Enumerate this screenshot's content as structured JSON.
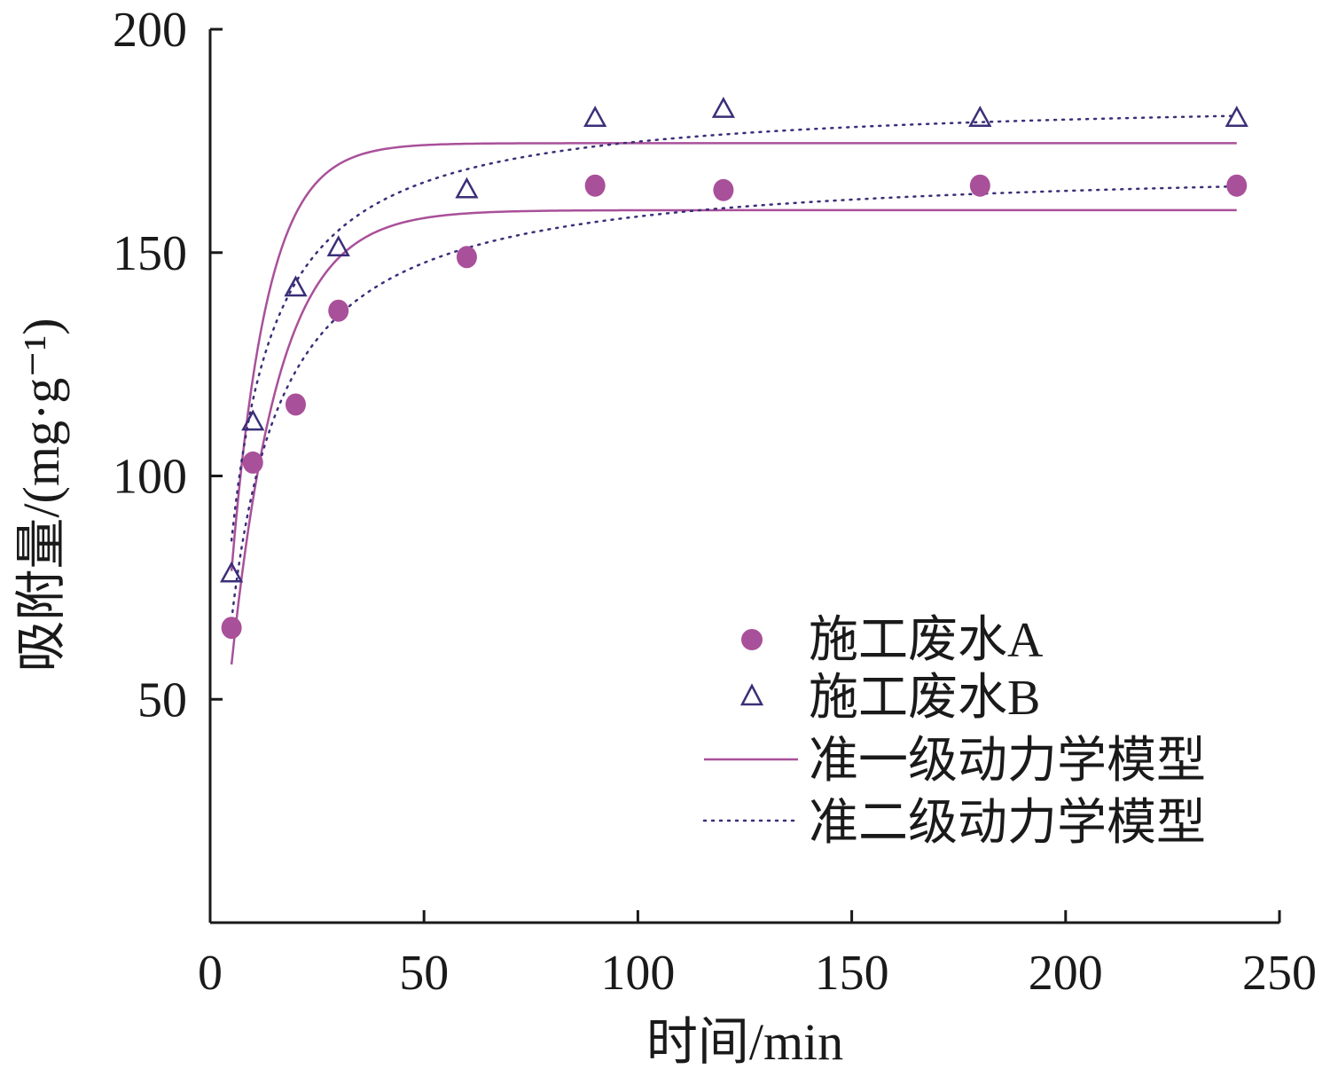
{
  "chart_data": {
    "type": "scatter",
    "title": "",
    "xlabel": "时间/min",
    "ylabel": "吸附量/(mg·g⁻¹)",
    "xlim": [
      0,
      250
    ],
    "ylim": [
      0,
      200
    ],
    "x_ticks": [
      0,
      50,
      100,
      150,
      200,
      250
    ],
    "y_ticks": [
      50,
      100,
      150,
      200
    ],
    "grid": false,
    "legend_position": "right",
    "series": [
      {
        "name": "施工废水A",
        "kind": "points",
        "marker": "filled-circle",
        "color": "#a9509a",
        "x": [
          5,
          10,
          20,
          30,
          60,
          90,
          120,
          180,
          240
        ],
        "y": [
          66,
          103,
          116,
          137,
          149,
          165,
          164,
          165,
          165
        ]
      },
      {
        "name": "施工废水B",
        "kind": "points",
        "marker": "open-triangle",
        "color": "#3a2f78",
        "x": [
          5,
          10,
          20,
          30,
          60,
          90,
          120,
          180,
          240
        ],
        "y": [
          78,
          112,
          142,
          151,
          164,
          180,
          182,
          180,
          180
        ]
      },
      {
        "name": "准一级动力学模型",
        "kind": "fit-lines",
        "line_style": "solid",
        "color": "#a9509a",
        "model": "pseudo-first-order",
        "curves": [
          {
            "qe": 159.5,
            "k1": 0.09
          },
          {
            "qe": 174.5,
            "k1": 0.12
          }
        ]
      },
      {
        "name": "准二级动力学模型",
        "kind": "fit-lines",
        "line_style": "dotted",
        "color": "#3a2f78",
        "model": "pseudo-second-order",
        "curves": [
          {
            "qe": 170,
            "k2": 0.00078
          },
          {
            "qe": 185,
            "k2": 0.00093
          }
        ]
      }
    ]
  }
}
